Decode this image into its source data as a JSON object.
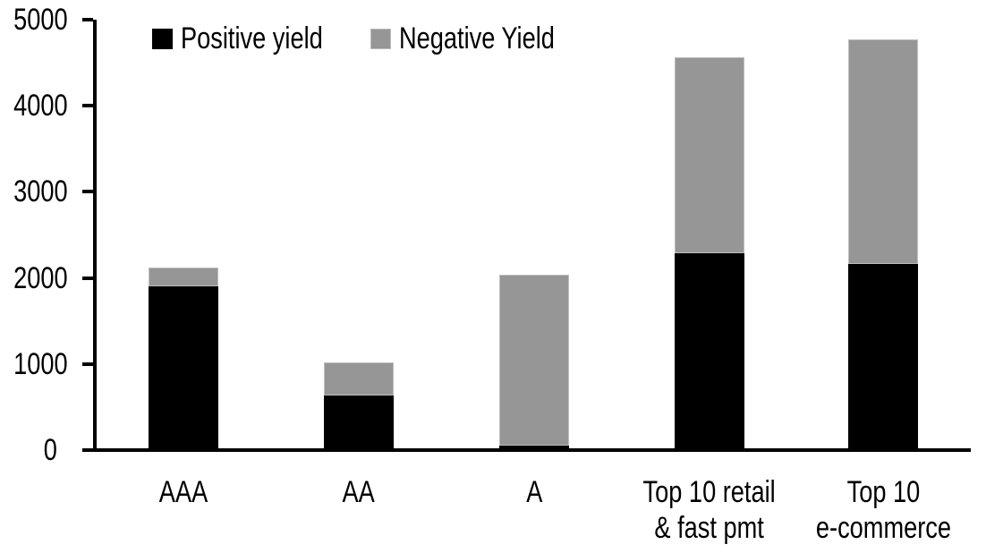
{
  "chart_data": {
    "type": "bar",
    "stacked": true,
    "title": "",
    "xlabel": "",
    "ylabel": "",
    "categories": [
      "AAA",
      "AA",
      "A",
      "Top 10 retail\n& fast pmt",
      "Top 10\ne-commerce"
    ],
    "series": [
      {
        "name": "Positive yield",
        "color": "#000000",
        "values": [
          1900,
          630,
          50,
          2290,
          2160
        ]
      },
      {
        "name": "Negative Yield",
        "color": "#969696",
        "values": [
          220,
          390,
          1990,
          2270,
          2610
        ]
      }
    ],
    "totals": [
      2120,
      1020,
      2040,
      4560,
      4770
    ],
    "ylim": [
      0,
      5000
    ],
    "yticks": [
      0,
      1000,
      2000,
      3000,
      4000,
      5000
    ],
    "grid": false,
    "legend_position": "top-left",
    "background_color": "#ffffff",
    "axis_color": "#000000",
    "gray_border_color": "#bdbdbd"
  }
}
